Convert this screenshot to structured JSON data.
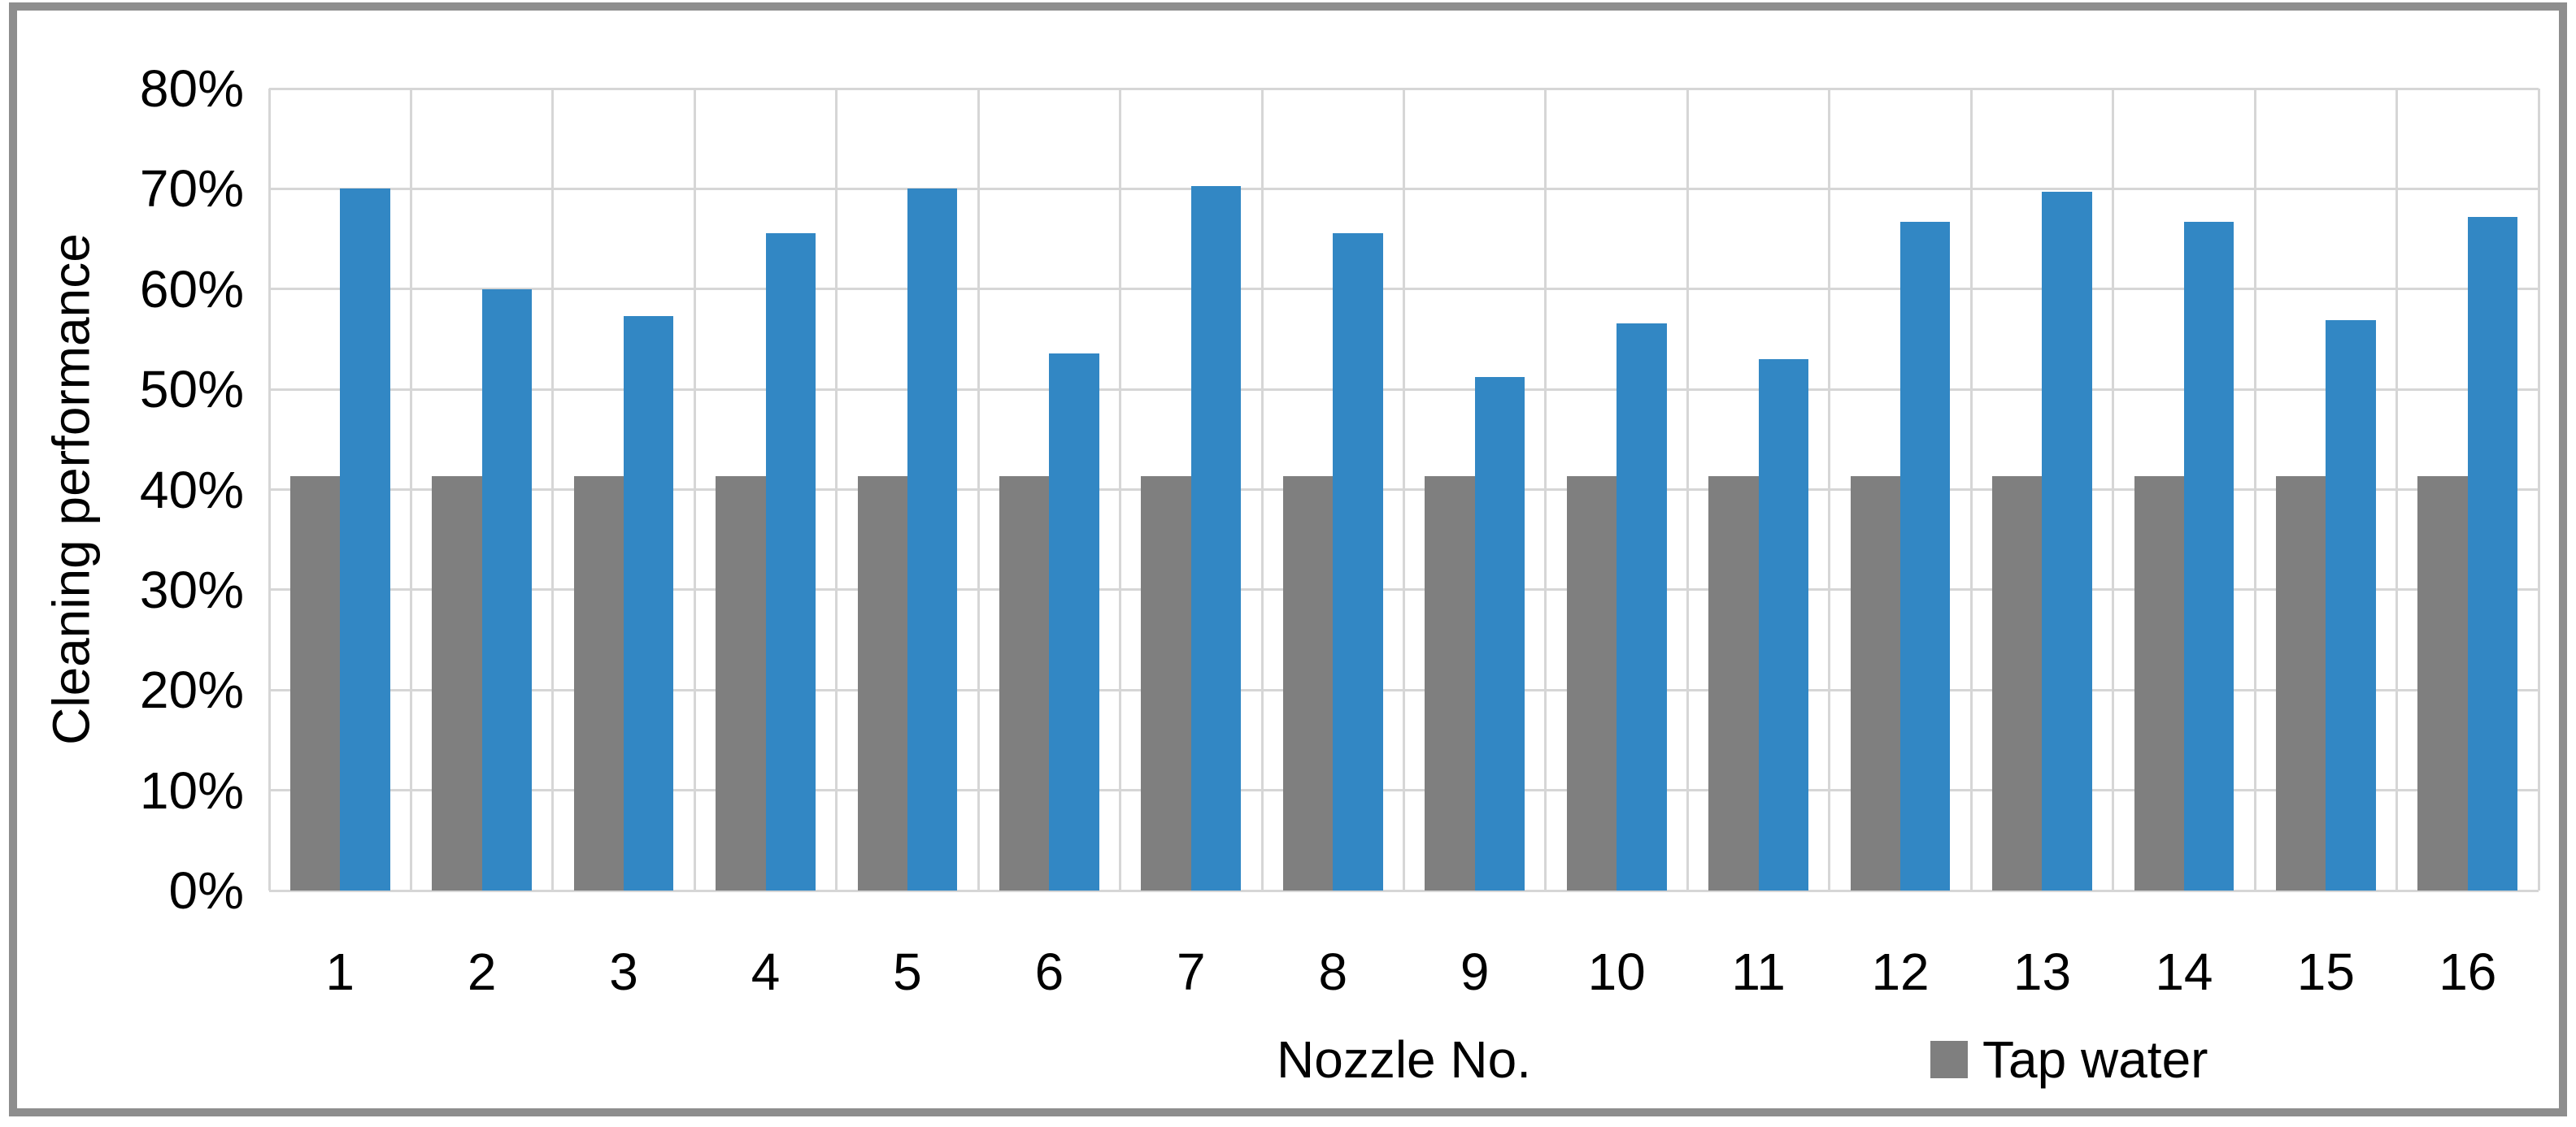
{
  "chart_data": {
    "type": "bar",
    "title": "",
    "xlabel": "Nozzle No.",
    "ylabel": "Cleaning performance",
    "categories": [
      "1",
      "2",
      "3",
      "4",
      "5",
      "6",
      "7",
      "8",
      "9",
      "10",
      "11",
      "12",
      "13",
      "14",
      "15",
      "16"
    ],
    "series": [
      {
        "name": "Tap water",
        "color": "#7F7F7F",
        "unit": "%",
        "values": [
          41.3,
          41.3,
          41.3,
          41.3,
          41.3,
          41.3,
          41.3,
          41.3,
          41.3,
          41.3,
          41.3,
          41.3,
          41.3,
          41.3,
          41.3,
          41.3
        ]
      },
      {
        "name": "",
        "color": "#3287C4",
        "unit": "%",
        "values": [
          70.0,
          60.0,
          57.3,
          65.6,
          70.0,
          53.6,
          70.3,
          65.6,
          51.2,
          56.6,
          53.0,
          66.7,
          69.7,
          66.7,
          56.9,
          67.2
        ]
      }
    ],
    "ylim": [
      0,
      80
    ],
    "y_tick_step": 10,
    "y_ticks": [
      "0%",
      "10%",
      "20%",
      "30%",
      "40%",
      "50%",
      "60%",
      "70%",
      "80%"
    ],
    "grid": "both",
    "legend": {
      "position": "bottom-right",
      "entries": [
        {
          "label": "Tap water",
          "color": "#7F7F7F"
        }
      ]
    }
  },
  "styles": {
    "gridline_color": "#D6D6D6",
    "frame_border_color": "#8E8E8E",
    "background_color": "#FFFFFF",
    "text_color": "#000000"
  }
}
